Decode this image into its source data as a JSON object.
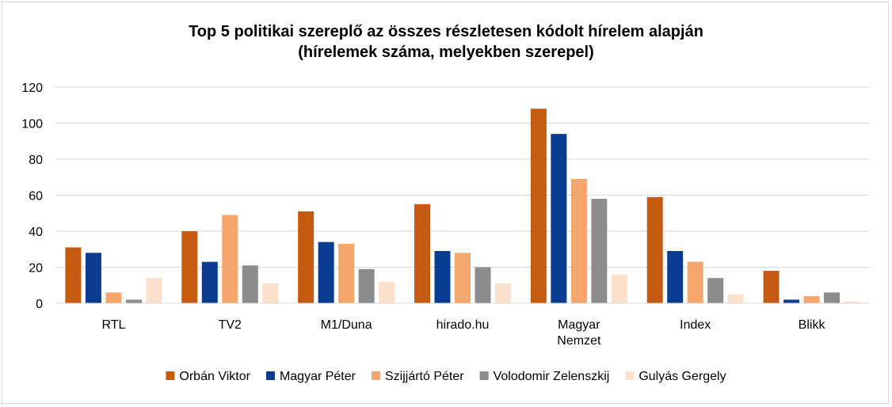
{
  "chart_data": {
    "type": "bar",
    "title": [
      "Top 5 politikai szereplő az összes részletesen kódolt hírelem alapján",
      "(hírelemek száma, melyekben szerepel)"
    ],
    "categories": [
      [
        "RTL"
      ],
      [
        "TV2"
      ],
      [
        "M1/Duna"
      ],
      [
        "hirado.hu"
      ],
      [
        "Magyar",
        "Nemzet"
      ],
      [
        "Index"
      ],
      [
        "Blikk"
      ]
    ],
    "series": [
      {
        "name": "Orbán Viktor",
        "color": "#c55a11",
        "values": [
          31,
          40,
          51,
          55,
          108,
          59,
          18
        ]
      },
      {
        "name": "Magyar Péter",
        "color": "#0a3d91",
        "values": [
          28,
          23,
          34,
          29,
          94,
          29,
          2
        ]
      },
      {
        "name": "Szijjártó Péter",
        "color": "#f4a66b",
        "values": [
          6,
          49,
          33,
          28,
          69,
          23,
          4
        ]
      },
      {
        "name": "Volodomir Zelenszkij",
        "color": "#8c8c8c",
        "values": [
          2,
          21,
          19,
          20,
          58,
          14,
          6
        ]
      },
      {
        "name": "Gulyás Gergely",
        "color": "#fbe0cc",
        "values": [
          14,
          11,
          12,
          11,
          16,
          5,
          1
        ]
      }
    ],
    "ylim": [
      0,
      120
    ],
    "yticks": [
      0,
      20,
      40,
      60,
      80,
      100,
      120
    ],
    "grid": true,
    "legend": "bottom"
  }
}
